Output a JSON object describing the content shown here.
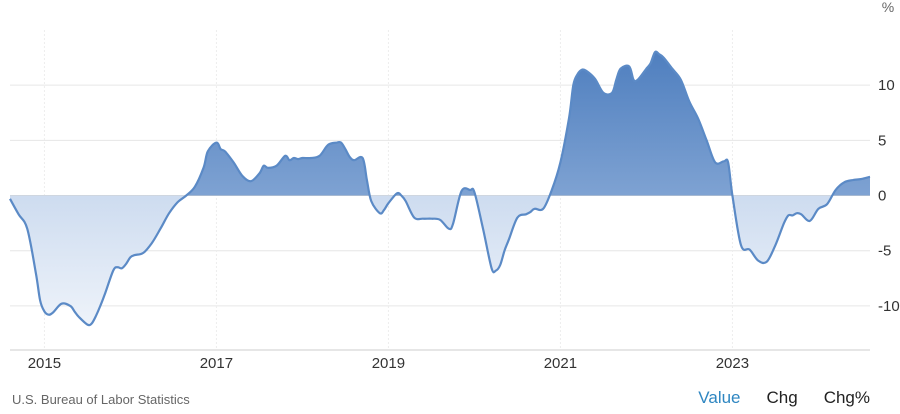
{
  "chart_data": {
    "type": "area",
    "unit": "%",
    "x_ticks": [
      "2015",
      "2017",
      "2019",
      "2021",
      "2023"
    ],
    "y_ticks": [
      10,
      5,
      0,
      -5,
      -10
    ],
    "xlim": [
      2014.6,
      2024.6
    ],
    "ylim": [
      -14,
      15
    ],
    "grid": true,
    "color": "#5b8ac6",
    "series": [
      {
        "x": [
          2014.6,
          2014.7,
          2014.8,
          2014.9,
          2014.95,
          2015.0,
          2015.05,
          2015.1,
          2015.2,
          2015.3,
          2015.35,
          2015.4,
          2015.5,
          2015.55,
          2015.6,
          2015.65,
          2015.7,
          2015.8,
          2015.85,
          2015.9,
          2015.95,
          2016.0,
          2016.05,
          2016.15,
          2016.25,
          2016.35,
          2016.45,
          2016.55,
          2016.65,
          2016.75,
          2016.85,
          2016.9,
          2017.0,
          2017.05,
          2017.1,
          2017.2,
          2017.3,
          2017.4,
          2017.5,
          2017.55,
          2017.6,
          2017.7,
          2017.8,
          2017.85,
          2017.9,
          2017.95,
          2018.0,
          2018.1,
          2018.2,
          2018.3,
          2018.4,
          2018.45,
          2018.5,
          2018.55,
          2018.6,
          2018.7,
          2018.75,
          2018.8,
          2018.9,
          2018.95,
          2019.0,
          2019.1,
          2019.15,
          2019.2,
          2019.3,
          2019.4,
          2019.5,
          2019.6,
          2019.7,
          2019.75,
          2019.85,
          2019.95,
          2020.0,
          2020.1,
          2020.2,
          2020.25,
          2020.3,
          2020.35,
          2020.4,
          2020.5,
          2020.6,
          2020.65,
          2020.7,
          2020.8,
          2020.9,
          2021.0,
          2021.1,
          2021.15,
          2021.2,
          2021.25,
          2021.3,
          2021.4,
          2021.5,
          2021.6,
          2021.65,
          2021.7,
          2021.8,
          2021.85,
          2021.9,
          2022.0,
          2022.05,
          2022.1,
          2022.15,
          2022.2,
          2022.3,
          2022.4,
          2022.5,
          2022.6,
          2022.7,
          2022.8,
          2022.9,
          2022.95,
          2023.0,
          2023.1,
          2023.2,
          2023.3,
          2023.4,
          2023.5,
          2023.6,
          2023.65,
          2023.7,
          2023.75,
          2023.8,
          2023.9,
          2024.0,
          2024.1,
          2024.2,
          2024.3,
          2024.4,
          2024.5,
          2024.6
        ],
        "values": [
          -0.3,
          -1.7,
          -3.0,
          -7.0,
          -9.5,
          -10.5,
          -10.8,
          -10.6,
          -9.8,
          -10.0,
          -10.5,
          -11.0,
          -11.7,
          -11.6,
          -10.9,
          -10.0,
          -9.0,
          -6.8,
          -6.5,
          -6.6,
          -6.2,
          -5.6,
          -5.4,
          -5.2,
          -4.3,
          -3.0,
          -1.6,
          -0.6,
          0.0,
          0.8,
          2.5,
          4.0,
          4.8,
          4.2,
          4.0,
          3.0,
          1.8,
          1.3,
          2.0,
          2.7,
          2.5,
          2.7,
          3.6,
          3.2,
          3.4,
          3.3,
          3.4,
          3.4,
          3.6,
          4.6,
          4.8,
          4.8,
          4.2,
          3.5,
          3.2,
          3.4,
          1.4,
          -0.5,
          -1.6,
          -1.3,
          -0.7,
          0.2,
          0.0,
          -0.5,
          -2.0,
          -2.1,
          -2.1,
          -2.2,
          -3.0,
          -2.6,
          0.4,
          0.5,
          0.3,
          -3.0,
          -6.6,
          -6.8,
          -6.3,
          -5.0,
          -4.0,
          -2.0,
          -1.7,
          -1.5,
          -1.2,
          -1.2,
          0.5,
          3.0,
          7.0,
          10.0,
          11.0,
          11.4,
          11.3,
          10.6,
          9.3,
          9.3,
          10.5,
          11.5,
          11.7,
          10.5,
          10.5,
          11.5,
          12.0,
          13.0,
          12.8,
          12.5,
          11.5,
          10.5,
          8.5,
          7.0,
          5.0,
          3.0,
          3.1,
          3.0,
          0.0,
          -4.5,
          -4.9,
          -5.9,
          -6.0,
          -4.5,
          -2.5,
          -1.8,
          -1.8,
          -1.6,
          -1.7,
          -2.3,
          -1.2,
          -0.8,
          0.5,
          1.2,
          1.4,
          1.5,
          1.7
        ]
      }
    ]
  },
  "footer": {
    "source": "U.S. Bureau of Labor Statistics",
    "tabs": [
      "Value",
      "Chg",
      "Chg%"
    ],
    "active_tab": "Value",
    "active_color": "#2e86c1"
  }
}
